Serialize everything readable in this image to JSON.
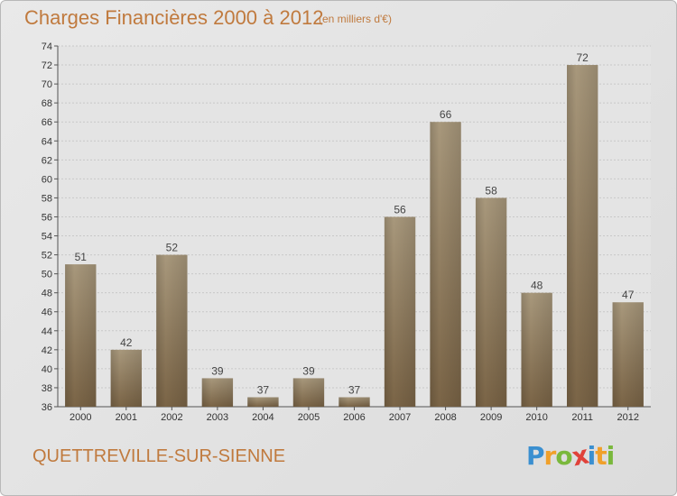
{
  "header": {
    "title": "Charges Financières 2000 à 2012",
    "subtitle": "(en milliers d'€)"
  },
  "footer": {
    "commune": "QUETTREVILLE-SUR-SIENNE",
    "logo_letters": [
      "P",
      "r",
      "o",
      "x",
      "i",
      "t",
      "i"
    ],
    "logo_colors": [
      "#3a8fd0",
      "#f0a02a",
      "#7ab83c",
      "#e0423a",
      "#3a8fd0",
      "#f0a02a",
      "#7ab83c"
    ]
  },
  "chart_data": {
    "type": "bar",
    "categories": [
      "2000",
      "2001",
      "2002",
      "2003",
      "2004",
      "2005",
      "2006",
      "2007",
      "2008",
      "2009",
      "2010",
      "2011",
      "2012"
    ],
    "values": [
      51,
      42,
      52,
      39,
      37,
      39,
      37,
      56,
      66,
      58,
      48,
      72,
      47
    ],
    "ylim": [
      36,
      74
    ],
    "yticks": [
      36,
      38,
      40,
      42,
      44,
      46,
      48,
      50,
      52,
      54,
      56,
      58,
      60,
      62,
      64,
      66,
      68,
      70,
      72,
      74
    ],
    "grid": true,
    "bar_color": "#8c7658",
    "title": "Charges Financières 2000 à 2012",
    "xlabel": "",
    "ylabel": ""
  }
}
